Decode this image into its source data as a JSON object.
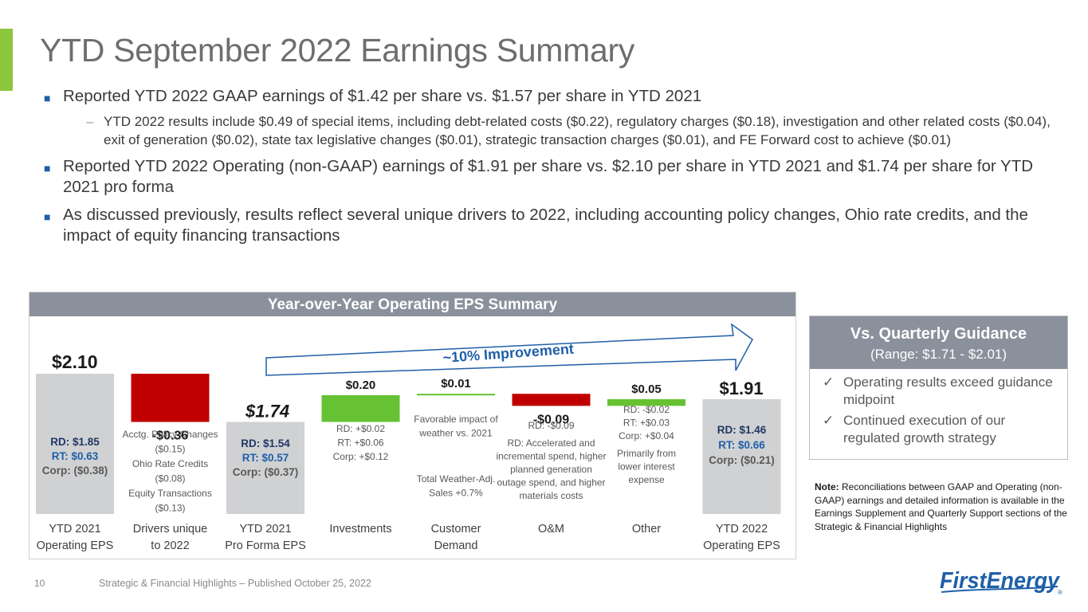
{
  "title": "YTD September 2022 Earnings Summary",
  "bullets": [
    "Reported YTD 2022 GAAP earnings of $1.42 per share vs. $1.57 per share in YTD 2021",
    "YTD 2022 results include $0.49 of special items, including debt-related costs ($0.22), regulatory charges ($0.18), investigation and other related costs ($0.04), exit of generation ($0.02), state tax legislative changes ($0.01), strategic transaction charges ($0.01), and FE Forward cost to achieve ($0.01)",
    "Reported YTD 2022 Operating (non-GAAP) earnings of $1.91 per share vs. $2.10 per share in YTD 2021 and $1.74 per share for YTD 2021 pro forma",
    "As discussed previously, results reflect several unique drivers to 2022, including accounting policy changes, Ohio rate credits, and the impact of equity financing transactions"
  ],
  "chart_header": "Year-over-Year Operating EPS Summary",
  "colors": {
    "total": "#d0d1d3",
    "negative": "#c00000",
    "positive": "#66c133",
    "accent": "#8dc63f",
    "header": "#8a919c",
    "blue": "#1f5fa8"
  },
  "chart_data": {
    "type": "bar",
    "subtype": "waterfall",
    "title": "Year-over-Year Operating EPS Summary",
    "categories": [
      "YTD 2021\nOperating EPS",
      "Drivers unique\nto 2022",
      "YTD 2021\nPro Forma EPS",
      "Investments",
      "Customer\nDemand",
      "O&M",
      "Other",
      "YTD 2022\nOperating EPS"
    ],
    "values": [
      2.1,
      -0.36,
      1.74,
      0.2,
      0.01,
      -0.09,
      0.05,
      1.91
    ],
    "kinds": [
      "total",
      "delta",
      "total",
      "delta",
      "delta",
      "delta",
      "delta",
      "total"
    ],
    "value_labels": [
      "$2.10",
      "-$0.36",
      "$1.74",
      "$0.20",
      "$0.01",
      "-$0.09",
      "$0.05",
      "$1.91"
    ],
    "details": [
      [
        "RD: $1.85",
        "RT: $0.63",
        "Corp: ($0.38)"
      ],
      [
        "Acctg. Policy Changes",
        "($0.15)",
        "Ohio Rate Credits",
        "($0.08)",
        "Equity Transactions",
        "($0.13)"
      ],
      [
        "RD: $1.54",
        "RT: $0.57",
        "Corp: ($0.37)"
      ],
      [
        "RD: +$0.02",
        "RT: +$0.06",
        "Corp: +$0.12"
      ],
      [
        "Favorable impact of",
        "weather vs. 2021",
        "Total Weather-Adj.",
        "Sales +0.7%"
      ],
      [
        "RD: -$0.09",
        "RD: Accelerated and",
        "incremental spend, higher",
        "planned generation",
        "outage spend, and higher",
        "materials costs"
      ],
      [
        "RD: -$0.02",
        "RT: +$0.03",
        "Corp: +$0.04",
        "Primarily from",
        "lower interest",
        "expense"
      ],
      [
        "RD: $1.46",
        "RT: $0.66",
        "Corp: ($0.21)"
      ]
    ],
    "improvement_label": "~10% Improvement"
  },
  "guidance": {
    "title": "Vs. Quarterly Guidance",
    "range": "(Range: $1.71 - $2.01)",
    "check": "✓",
    "items": [
      "Operating results exceed guidance midpoint",
      "Continued execution of our regulated growth strategy"
    ]
  },
  "note": {
    "label": "Note:",
    "text": "Reconciliations between GAAP and Operating (non-GAAP) earnings and detailed information is available in the Earnings Supplement and Quarterly Support sections of the Strategic & Financial Highlights"
  },
  "footer": {
    "page": "10",
    "text": "Strategic & Financial Highlights – Published October 25, 2022"
  },
  "logo": {
    "text": "FirstEnergy",
    "mark": "®"
  }
}
